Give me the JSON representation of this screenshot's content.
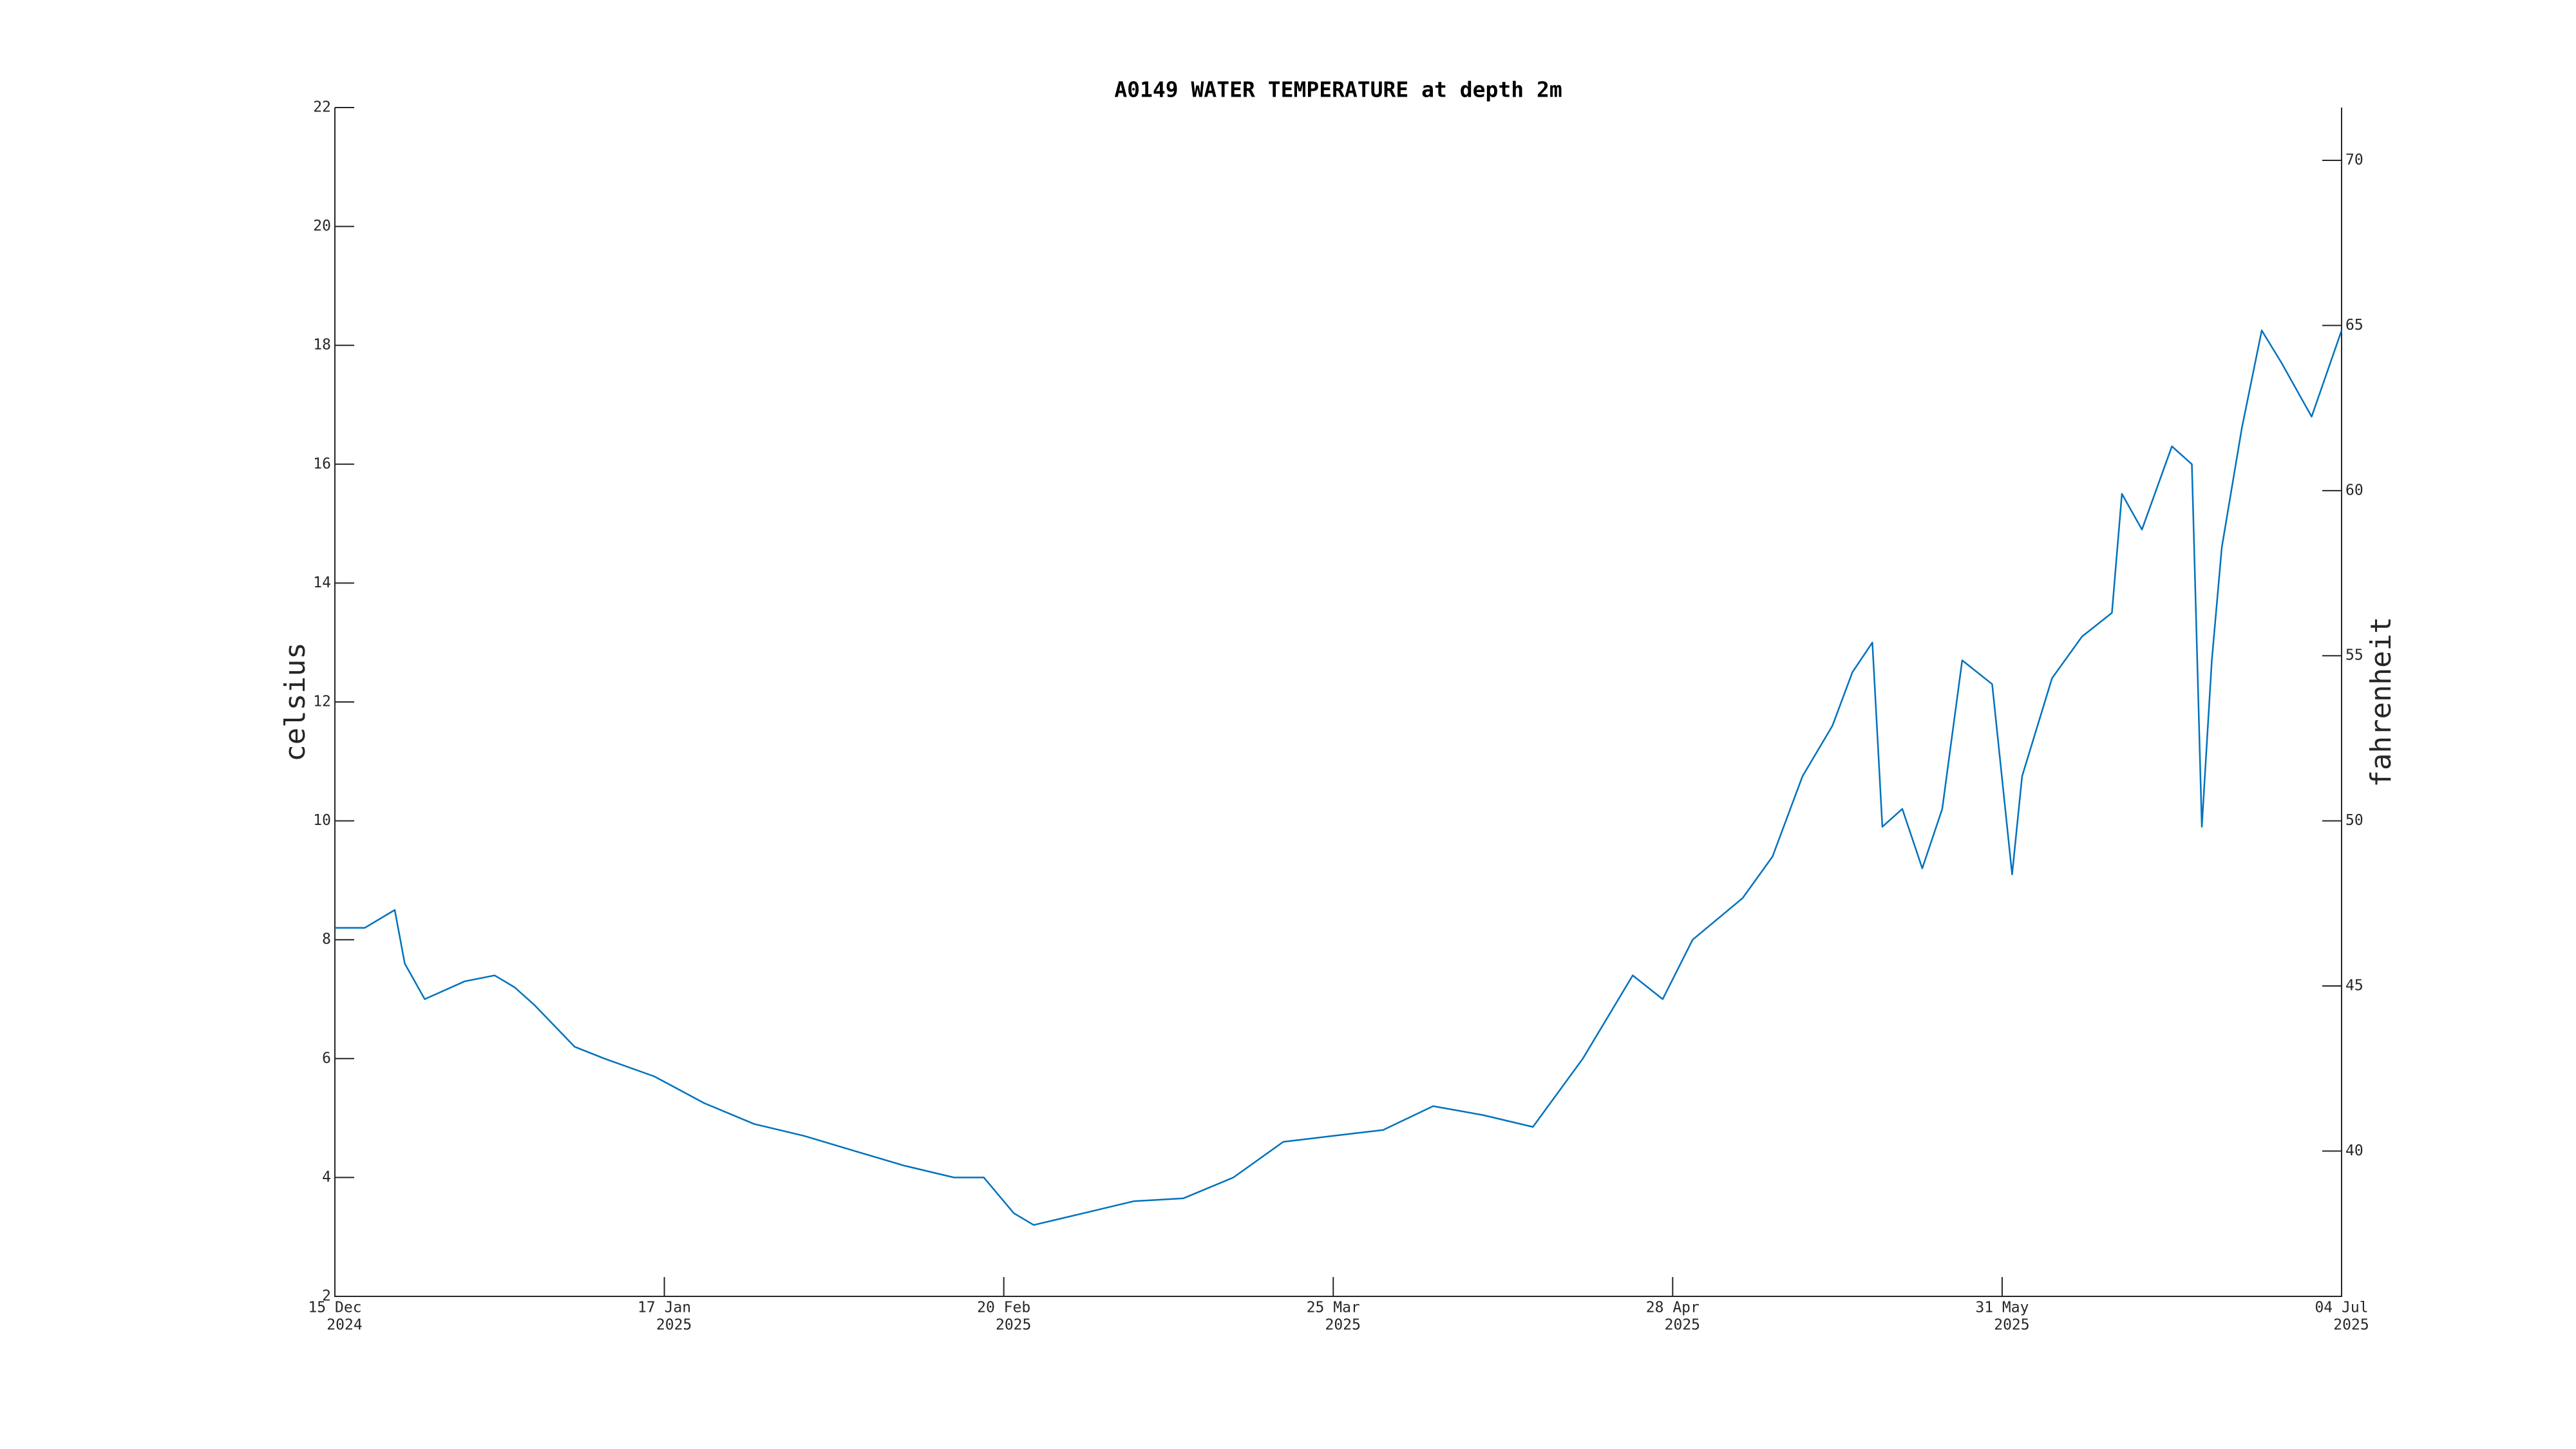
{
  "chart_data": {
    "type": "line",
    "title": "A0149 WATER TEMPERATURE at depth 2m",
    "ylabel": "celsius",
    "y2label": "fahrenheit",
    "ylim": [
      2,
      22
    ],
    "yticks": [
      2,
      4,
      6,
      8,
      10,
      12,
      14,
      16,
      18,
      20,
      22
    ],
    "y2lim": [
      35.6,
      71.6
    ],
    "y2ticks": [
      40,
      45,
      50,
      55,
      60,
      65,
      70
    ],
    "xlim": [
      "2024-12-15",
      "2025-07-04"
    ],
    "xticks": [
      {
        "value": "2024-12-15",
        "label": [
          "15 Dec",
          "2024"
        ]
      },
      {
        "value": "2025-01-17",
        "label": [
          "17 Jan",
          "2025"
        ]
      },
      {
        "value": "2025-02-20",
        "label": [
          "20 Feb",
          "2025"
        ]
      },
      {
        "value": "2025-03-25",
        "label": [
          "25 Mar",
          "2025"
        ]
      },
      {
        "value": "2025-04-28",
        "label": [
          "28 Apr",
          "2025"
        ]
      },
      {
        "value": "2025-05-31",
        "label": [
          "31 May",
          "2025"
        ]
      },
      {
        "value": "2025-07-04",
        "label": [
          "04 Jul",
          "2025"
        ]
      }
    ],
    "x": [
      "2024-12-15",
      "2024-12-18",
      "2024-12-21",
      "2024-12-22",
      "2024-12-24",
      "2024-12-28",
      "2024-12-31",
      "2025-01-02",
      "2025-01-04",
      "2025-01-08",
      "2025-01-11",
      "2025-01-16",
      "2025-01-21",
      "2025-01-26",
      "2025-01-31",
      "2025-02-05",
      "2025-02-10",
      "2025-02-15",
      "2025-02-18",
      "2025-02-21",
      "2025-02-23",
      "2025-02-28",
      "2025-03-05",
      "2025-03-10",
      "2025-03-15",
      "2025-03-20",
      "2025-03-25",
      "2025-03-30",
      "2025-04-04",
      "2025-04-09",
      "2025-04-14",
      "2025-04-19",
      "2025-04-24",
      "2025-04-27",
      "2025-04-30",
      "2025-05-05",
      "2025-05-08",
      "2025-05-11",
      "2025-05-14",
      "2025-05-16",
      "2025-05-18",
      "2025-05-19",
      "2025-05-21",
      "2025-05-23",
      "2025-05-25",
      "2025-05-27",
      "2025-05-30",
      "2025-06-01",
      "2025-06-02",
      "2025-06-05",
      "2025-06-08",
      "2025-06-11",
      "2025-06-12",
      "2025-06-14",
      "2025-06-17",
      "2025-06-19",
      "2025-06-20",
      "2025-06-21",
      "2025-06-22",
      "2025-06-24",
      "2025-06-26",
      "2025-06-28",
      "2025-06-30",
      "2025-07-01",
      "2025-07-04"
    ],
    "series": [
      {
        "color": "#0072bd",
        "values": [
          8.2,
          8.2,
          8.5,
          7.6,
          7.0,
          7.3,
          7.4,
          7.2,
          6.9,
          6.2,
          6.0,
          5.7,
          5.25,
          4.9,
          4.7,
          4.45,
          4.2,
          4.0,
          4.0,
          3.4,
          3.2,
          3.4,
          3.6,
          3.65,
          4.0,
          4.6,
          4.7,
          4.8,
          5.2,
          5.05,
          4.85,
          6.0,
          7.4,
          7.0,
          8.0,
          8.7,
          9.4,
          10.75,
          11.6,
          12.5,
          13.0,
          9.9,
          10.2,
          9.2,
          10.2,
          12.7,
          12.3,
          9.1,
          10.75,
          12.4,
          13.1,
          13.5,
          15.5,
          14.9,
          16.3,
          16.0,
          9.9,
          12.7,
          14.6,
          16.6,
          18.25,
          17.7,
          17.1,
          16.8,
          18.25
        ]
      }
    ]
  }
}
